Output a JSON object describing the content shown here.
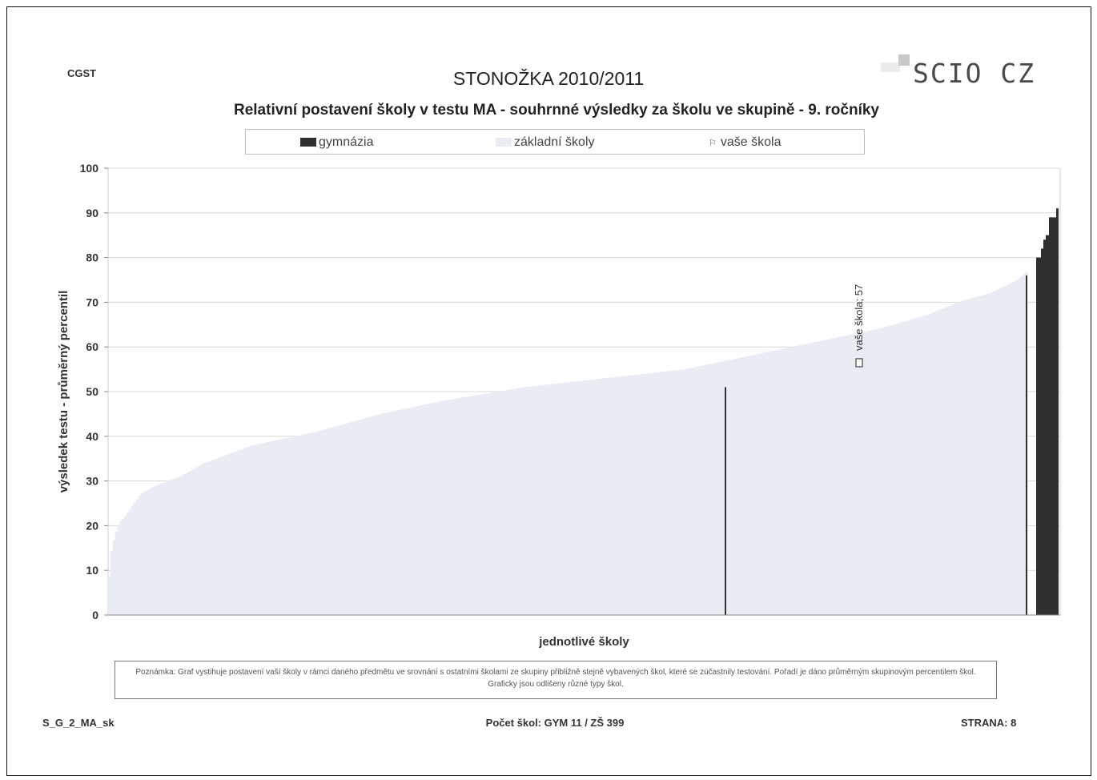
{
  "header": {
    "code": "CGST",
    "title": "STONOŽKA 2010/2011",
    "brand": "SCIO CZ"
  },
  "chart_data": {
    "type": "bar",
    "title": "Relativní postavení školy v testu MA - souhrnné výsledky za školu ve skupině - 9. ročníky",
    "xlabel": "jednotlivé školy",
    "ylabel": "výsledek testu - průměrný percentil",
    "ylim": [
      0,
      100
    ],
    "yticks": [
      "0",
      "10",
      "20",
      "30",
      "40",
      "50",
      "60",
      "70",
      "80",
      "90",
      "100"
    ],
    "grid": true,
    "legend_position": "top",
    "legend": [
      {
        "name": "gymnázia",
        "color": "#2f2f2f"
      },
      {
        "name": "základní školy",
        "color": "#e9ecf2"
      },
      {
        "name": "vaše škola",
        "color": "#555555"
      }
    ],
    "series": [
      {
        "name": "základní školy",
        "color": "#e9ecf2",
        "count": 399,
        "profile": [
          [
            0,
            0
          ],
          [
            2,
            12
          ],
          [
            6,
            16
          ],
          [
            12,
            20
          ],
          [
            25,
            23
          ],
          [
            40,
            27
          ],
          [
            60,
            29
          ],
          [
            90,
            31
          ],
          [
            120,
            34
          ],
          [
            180,
            38
          ],
          [
            260,
            41
          ],
          [
            340,
            45
          ],
          [
            420,
            48
          ],
          [
            520,
            51
          ],
          [
            620,
            53
          ],
          [
            720,
            55
          ],
          [
            800,
            58
          ],
          [
            880,
            61
          ],
          [
            960,
            64
          ],
          [
            1020,
            67
          ],
          [
            1060,
            70
          ],
          [
            1100,
            72
          ],
          [
            1135,
            75
          ],
          [
            1147,
            77
          ]
        ]
      },
      {
        "name": "gymnázia",
        "color": "#2f2f2f",
        "count": 11,
        "values": [
          51,
          76,
          80,
          80,
          82,
          84,
          85,
          89,
          89,
          89,
          91
        ]
      }
    ],
    "annotation": {
      "label": "vaše škola; 57",
      "value": 57
    }
  },
  "note": {
    "text": "Poznámka: Graf vystihuje postavení vaší školy v rámci daného předmětu ve srovnání s ostatními školami ze skupiny přibližně stejně vybavených škol, které se zúčastnily testování. Pořadí je dáno průměrným skupinovým percentilem škol. Graficky jsou odlišeny různé typy škol."
  },
  "footer": {
    "left": "S_G_2_MA_sk",
    "center": "Počet škol: GYM 11 / ZŠ 399",
    "right": "STRANA: 8"
  }
}
